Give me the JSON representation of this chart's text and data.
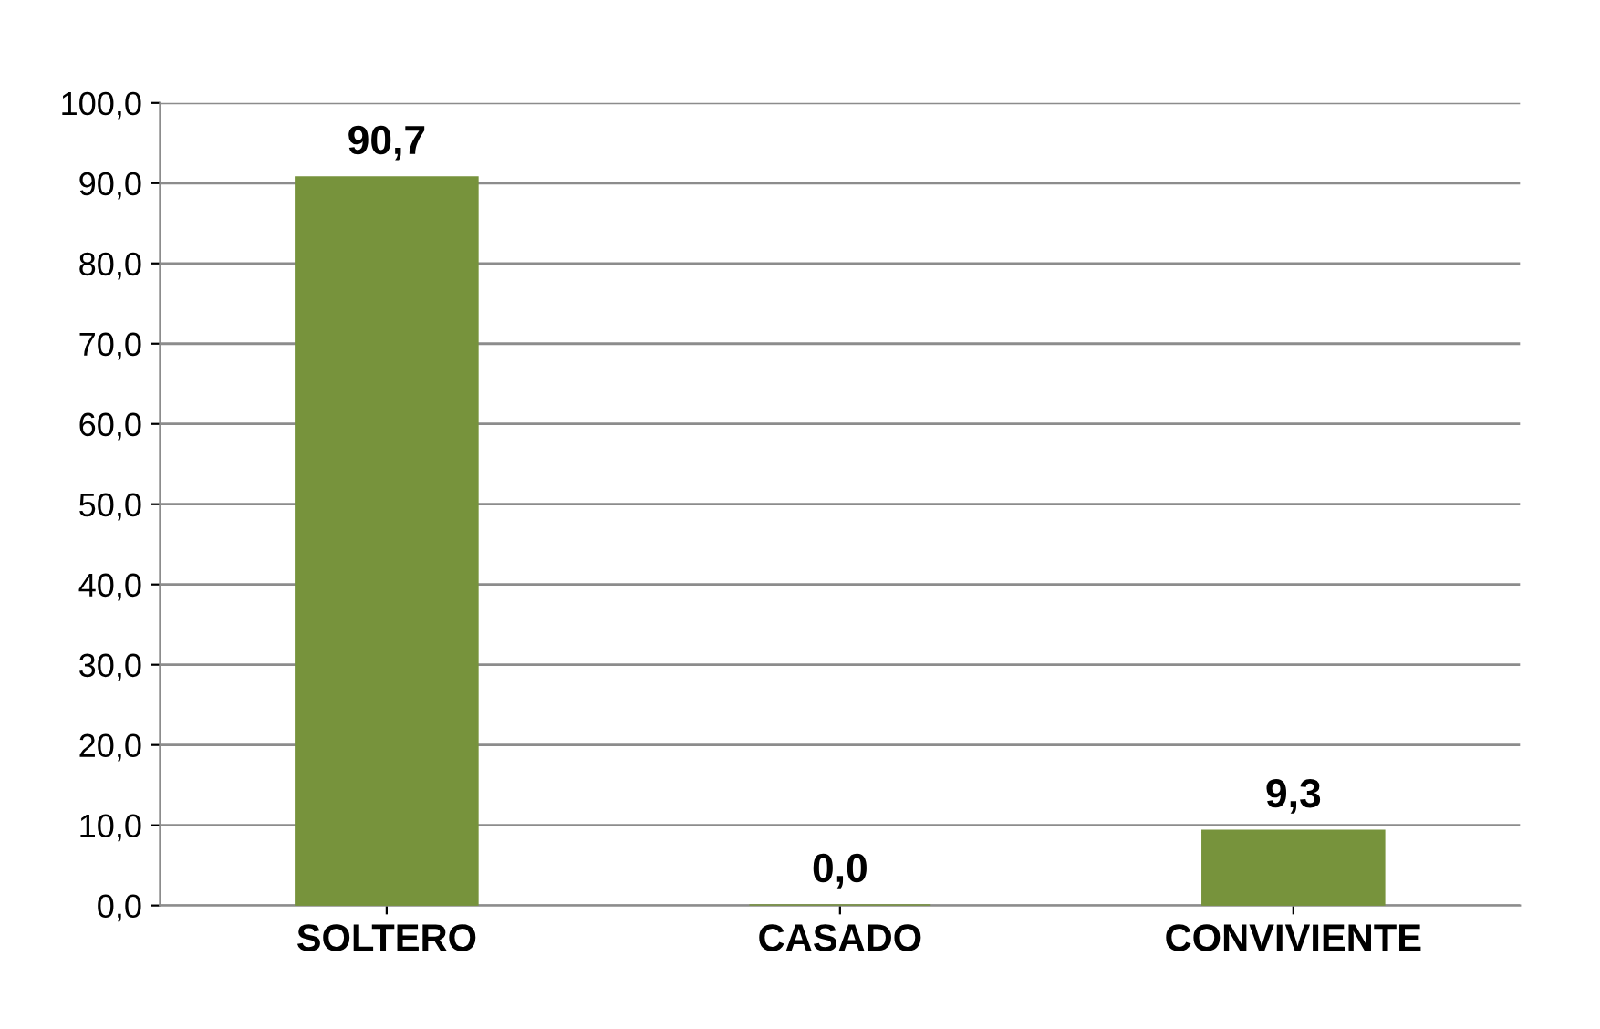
{
  "chart_data": {
    "type": "bar",
    "categories": [
      "SOLTERO",
      "CASADO",
      "CONVIVIENTE"
    ],
    "values": [
      90.7,
      0.0,
      9.3
    ],
    "value_labels": [
      "90,7",
      "0,0",
      "9,3"
    ],
    "color": "#77933c",
    "ylim": [
      0,
      100
    ],
    "yticks": [
      {
        "value": 0,
        "label": "0,0"
      },
      {
        "value": 10,
        "label": "10,0"
      },
      {
        "value": 20,
        "label": "20,0"
      },
      {
        "value": 30,
        "label": "30,0"
      },
      {
        "value": 40,
        "label": "40,0"
      },
      {
        "value": 50,
        "label": "50,0"
      },
      {
        "value": 60,
        "label": "60,0"
      },
      {
        "value": 70,
        "label": "70,0"
      },
      {
        "value": 80,
        "label": "80,0"
      },
      {
        "value": 90,
        "label": "90,0"
      },
      {
        "value": 100,
        "label": "100,0"
      }
    ],
    "grid": "y",
    "legend": false
  }
}
